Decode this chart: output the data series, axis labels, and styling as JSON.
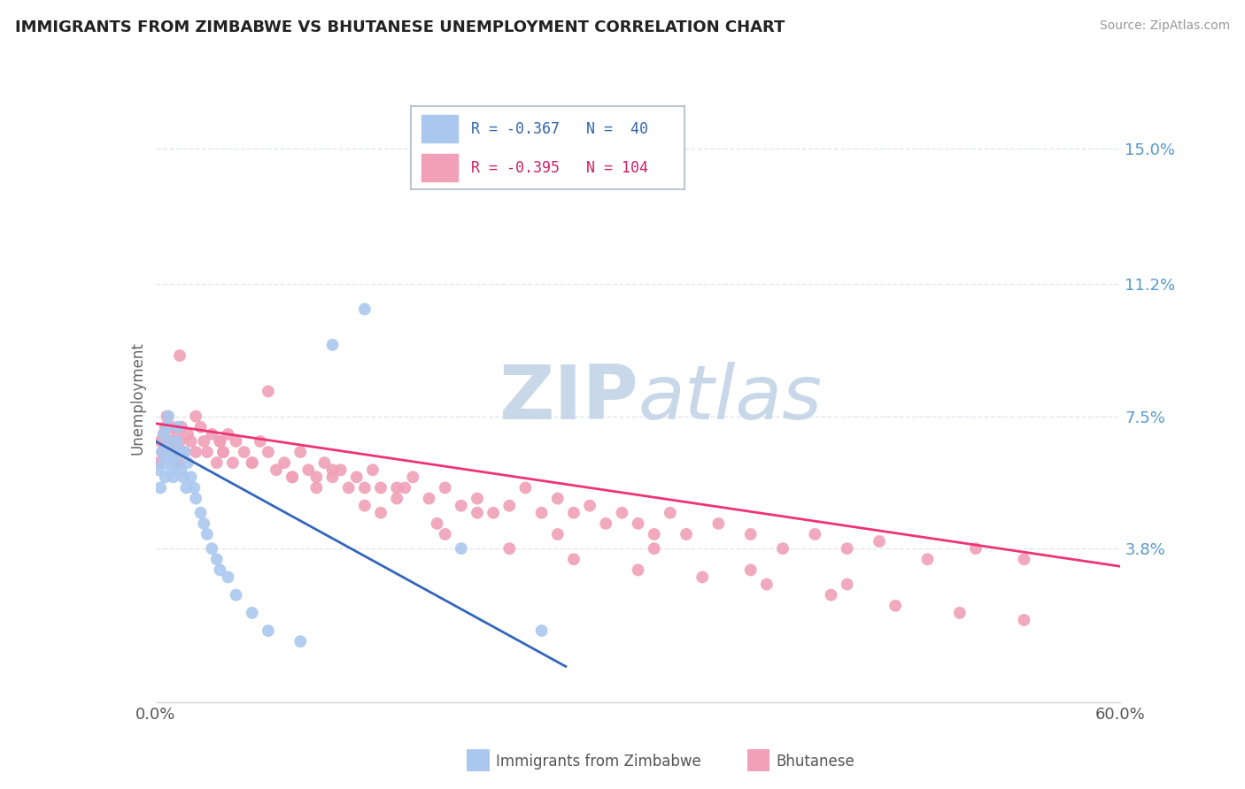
{
  "title": "IMMIGRANTS FROM ZIMBABWE VS BHUTANESE UNEMPLOYMENT CORRELATION CHART",
  "source": "Source: ZipAtlas.com",
  "ylabel": "Unemployment",
  "xlim": [
    0.0,
    0.6
  ],
  "ylim": [
    -0.005,
    0.165
  ],
  "y_tick_values_right": [
    0.038,
    0.075,
    0.112,
    0.15
  ],
  "y_tick_labels_right": [
    "3.8%",
    "7.5%",
    "11.2%",
    "15.0%"
  ],
  "legend_text1": "R = -0.367   N =  40",
  "legend_text2": "R = -0.395   N = 104",
  "color_zimbabwe": "#aac8ee",
  "color_bhutanese": "#f0a0b8",
  "color_line_zimbabwe": "#3366bb",
  "color_line_bhutanese": "#ee3377",
  "watermark_zip": "ZIP",
  "watermark_atlas": "atlas",
  "watermark_color": "#c8d8e8",
  "background_color": "#ffffff",
  "grid_color": "#dde8f0",
  "zim_line_x": [
    0.0,
    0.255
  ],
  "zim_line_y": [
    0.068,
    0.005
  ],
  "bhu_line_x": [
    0.0,
    0.6
  ],
  "bhu_line_y": [
    0.073,
    0.033
  ],
  "zimbabwe_scatter_x": [
    0.002,
    0.003,
    0.004,
    0.005,
    0.005,
    0.006,
    0.007,
    0.008,
    0.008,
    0.009,
    0.01,
    0.01,
    0.011,
    0.012,
    0.013,
    0.014,
    0.015,
    0.016,
    0.017,
    0.018,
    0.019,
    0.02,
    0.022,
    0.024,
    0.025,
    0.028,
    0.03,
    0.032,
    0.035,
    0.038,
    0.04,
    0.045,
    0.05,
    0.06,
    0.07,
    0.09,
    0.11,
    0.13,
    0.19,
    0.24
  ],
  "zimbabwe_scatter_y": [
    0.06,
    0.055,
    0.065,
    0.07,
    0.062,
    0.058,
    0.072,
    0.068,
    0.075,
    0.065,
    0.06,
    0.063,
    0.058,
    0.062,
    0.068,
    0.072,
    0.065,
    0.06,
    0.058,
    0.065,
    0.055,
    0.062,
    0.058,
    0.055,
    0.052,
    0.048,
    0.045,
    0.042,
    0.038,
    0.035,
    0.032,
    0.03,
    0.025,
    0.02,
    0.015,
    0.012,
    0.095,
    0.105,
    0.038,
    0.015
  ],
  "bhutanese_scatter_x": [
    0.002,
    0.003,
    0.004,
    0.005,
    0.006,
    0.007,
    0.008,
    0.009,
    0.01,
    0.011,
    0.012,
    0.013,
    0.014,
    0.015,
    0.016,
    0.018,
    0.02,
    0.022,
    0.025,
    0.028,
    0.03,
    0.032,
    0.035,
    0.038,
    0.04,
    0.042,
    0.045,
    0.048,
    0.05,
    0.055,
    0.06,
    0.065,
    0.07,
    0.075,
    0.08,
    0.085,
    0.09,
    0.095,
    0.1,
    0.105,
    0.11,
    0.115,
    0.12,
    0.125,
    0.13,
    0.135,
    0.14,
    0.15,
    0.155,
    0.16,
    0.17,
    0.18,
    0.19,
    0.2,
    0.21,
    0.22,
    0.23,
    0.24,
    0.25,
    0.26,
    0.27,
    0.28,
    0.29,
    0.3,
    0.31,
    0.32,
    0.33,
    0.35,
    0.37,
    0.39,
    0.41,
    0.43,
    0.45,
    0.48,
    0.51,
    0.54,
    0.042,
    0.085,
    0.13,
    0.175,
    0.06,
    0.1,
    0.14,
    0.18,
    0.22,
    0.26,
    0.3,
    0.34,
    0.38,
    0.42,
    0.46,
    0.5,
    0.54,
    0.015,
    0.025,
    0.04,
    0.07,
    0.11,
    0.15,
    0.2,
    0.25,
    0.31,
    0.37,
    0.43
  ],
  "bhutanese_scatter_y": [
    0.062,
    0.068,
    0.065,
    0.07,
    0.072,
    0.075,
    0.068,
    0.065,
    0.072,
    0.068,
    0.065,
    0.07,
    0.062,
    0.068,
    0.072,
    0.065,
    0.07,
    0.068,
    0.065,
    0.072,
    0.068,
    0.065,
    0.07,
    0.062,
    0.068,
    0.065,
    0.07,
    0.062,
    0.068,
    0.065,
    0.062,
    0.068,
    0.065,
    0.06,
    0.062,
    0.058,
    0.065,
    0.06,
    0.058,
    0.062,
    0.058,
    0.06,
    0.055,
    0.058,
    0.055,
    0.06,
    0.055,
    0.052,
    0.055,
    0.058,
    0.052,
    0.055,
    0.05,
    0.052,
    0.048,
    0.05,
    0.055,
    0.048,
    0.052,
    0.048,
    0.05,
    0.045,
    0.048,
    0.045,
    0.042,
    0.048,
    0.042,
    0.045,
    0.042,
    0.038,
    0.042,
    0.038,
    0.04,
    0.035,
    0.038,
    0.035,
    0.065,
    0.058,
    0.05,
    0.045,
    0.062,
    0.055,
    0.048,
    0.042,
    0.038,
    0.035,
    0.032,
    0.03,
    0.028,
    0.025,
    0.022,
    0.02,
    0.018,
    0.092,
    0.075,
    0.068,
    0.082,
    0.06,
    0.055,
    0.048,
    0.042,
    0.038,
    0.032,
    0.028
  ]
}
